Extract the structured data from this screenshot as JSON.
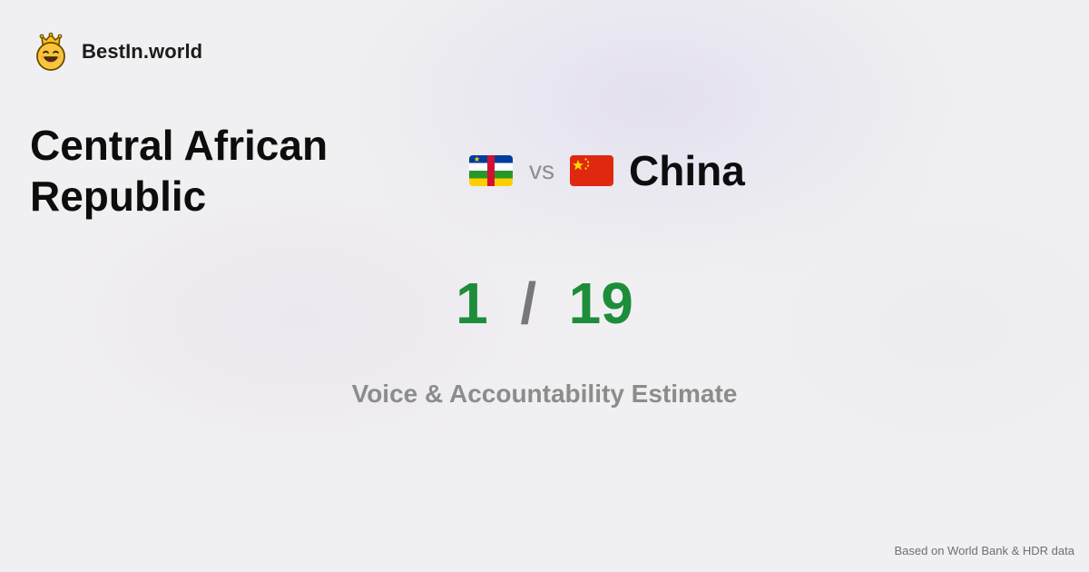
{
  "brand": {
    "name": "BestIn.world",
    "logo_icon": "crown-smiley-icon"
  },
  "comparison": {
    "left_country": "Central African Republic",
    "right_country": "China",
    "vs_label": "vs",
    "left_flag_icon": "flag-central-african-republic-icon",
    "right_flag_icon": "flag-china-icon"
  },
  "score": {
    "left_rank": "1",
    "separator": "/",
    "right_rank": "19"
  },
  "metric": {
    "label": "Voice & Accountability Estimate"
  },
  "footer": {
    "source": "Based on World Bank & HDR data"
  },
  "colors": {
    "score_green": "#1e8d3a",
    "separator_gray": "#777777",
    "metric_gray": "#8c8c8c",
    "title_black": "#0d0d0d"
  }
}
